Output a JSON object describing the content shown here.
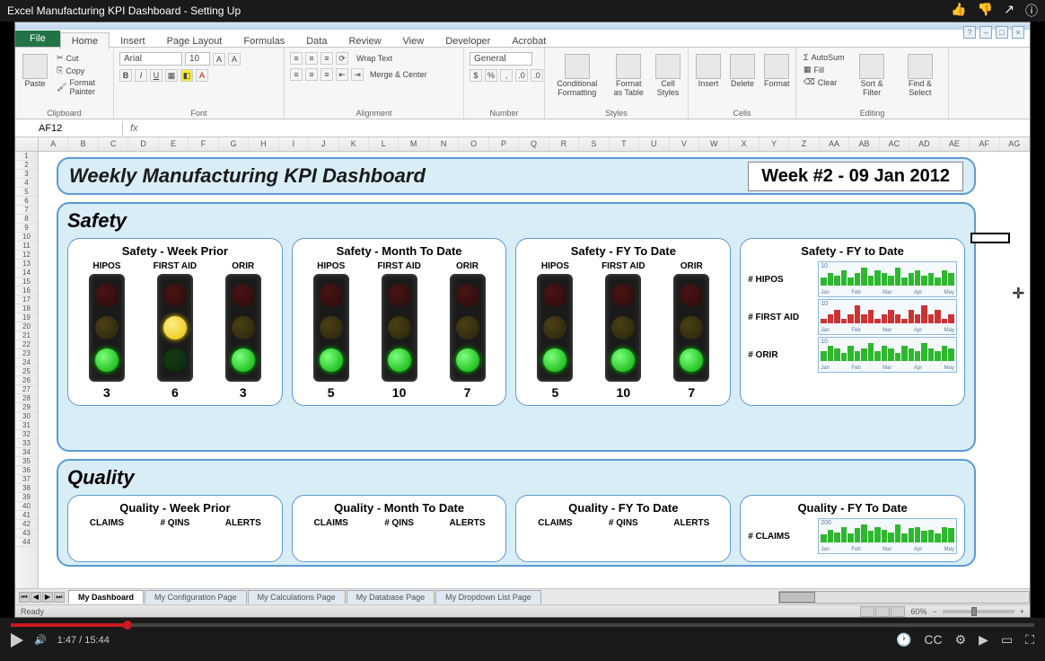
{
  "youtube": {
    "title": "Excel Manufacturing KPI Dashboard - Setting Up",
    "time_current": "1:47",
    "time_total": "15:44",
    "progress_pct": 11
  },
  "excel": {
    "tabs": [
      "Home",
      "Insert",
      "Page Layout",
      "Formulas",
      "Data",
      "Review",
      "View",
      "Developer",
      "Acrobat"
    ],
    "file_tab": "File",
    "clipboard": {
      "cut": "Cut",
      "copy": "Copy",
      "paint": "Format Painter",
      "paste": "Paste",
      "label": "Clipboard"
    },
    "font": {
      "name": "Arial",
      "size": "10",
      "label": "Font"
    },
    "alignment": {
      "wrap": "Wrap Text",
      "merge": "Merge & Center",
      "label": "Alignment"
    },
    "number": {
      "format": "General",
      "label": "Number"
    },
    "styles": {
      "cond": "Conditional Formatting",
      "table": "Format as Table",
      "cell": "Cell Styles",
      "label": "Styles"
    },
    "cells": {
      "insert": "Insert",
      "delete": "Delete",
      "format": "Format",
      "label": "Cells"
    },
    "editing": {
      "sum": "AutoSum",
      "fill": "Fill",
      "clear": "Clear",
      "sort": "Sort & Filter",
      "find": "Find & Select",
      "label": "Editing"
    },
    "namebox": "AF12",
    "columns": [
      "A",
      "B",
      "C",
      "D",
      "E",
      "F",
      "G",
      "H",
      "I",
      "J",
      "K",
      "L",
      "M",
      "N",
      "O",
      "P",
      "Q",
      "R",
      "S",
      "T",
      "U",
      "V",
      "W",
      "X",
      "Y",
      "Z",
      "AA",
      "AB",
      "AC",
      "AD",
      "AE",
      "AF",
      "AG"
    ],
    "sheet_tabs": [
      "My Dashboard",
      "My Configuration Page",
      "My Calculations Page",
      "My Database Page",
      "My Dropdown List Page"
    ],
    "status": "Ready",
    "zoom": "60%"
  },
  "dashboard": {
    "title": "Weekly Manufacturing KPI Dashboard",
    "week": "Week #2 - 09 Jan 2012",
    "panel_bg": "#d9edf7",
    "panel_border": "#5b9bd5",
    "safety": {
      "title": "Safety",
      "cards": [
        {
          "title": "Safety - Week Prior",
          "metrics": [
            {
              "label": "HIPOS",
              "light": "green",
              "value": "3"
            },
            {
              "label": "FIRST AID",
              "light": "yellow",
              "value": "6"
            },
            {
              "label": "ORIR",
              "light": "green",
              "value": "3"
            }
          ]
        },
        {
          "title": "Safety - Month To Date",
          "metrics": [
            {
              "label": "HIPOS",
              "light": "green",
              "value": "5"
            },
            {
              "label": "FIRST AID",
              "light": "green",
              "value": "10"
            },
            {
              "label": "ORIR",
              "light": "green",
              "value": "7"
            }
          ]
        },
        {
          "title": "Safety - FY To Date",
          "metrics": [
            {
              "label": "HIPOS",
              "light": "green",
              "value": "5"
            },
            {
              "label": "FIRST AID",
              "light": "green",
              "value": "10"
            },
            {
              "label": "ORIR",
              "light": "green",
              "value": "7"
            }
          ]
        }
      ],
      "spark": {
        "title": "Safety - FY to Date",
        "rows": [
          {
            "label": "# HIPOS",
            "top": "10",
            "color": "#2eb82e",
            "vals": [
              3,
              5,
              4,
              6,
              3,
              5,
              7,
              4,
              6,
              5,
              4,
              7,
              3,
              5,
              6,
              4,
              5,
              3,
              6,
              5
            ]
          },
          {
            "label": "# FIRST AID",
            "top": "10",
            "color": "#cc3333",
            "vals": [
              1,
              2,
              3,
              1,
              2,
              4,
              2,
              3,
              1,
              2,
              3,
              2,
              1,
              3,
              2,
              4,
              2,
              3,
              1,
              2
            ]
          },
          {
            "label": "# ORIR",
            "top": "10",
            "color": "#2eb82e",
            "vals": [
              4,
              6,
              5,
              3,
              6,
              4,
              5,
              7,
              4,
              6,
              5,
              3,
              6,
              5,
              4,
              7,
              5,
              4,
              6,
              5
            ]
          }
        ],
        "months": [
          "Jan",
          "Feb",
          "Mar",
          "Apr",
          "May"
        ]
      }
    },
    "quality": {
      "title": "Quality",
      "cards": [
        {
          "title": "Quality - Week Prior",
          "labels": [
            "CLAIMS",
            "# QINS",
            "ALERTS"
          ]
        },
        {
          "title": "Quality - Month To Date",
          "labels": [
            "CLAIMS",
            "# QINS",
            "ALERTS"
          ]
        },
        {
          "title": "Quality - FY To Date",
          "labels": [
            "CLAIMS",
            "# QINS",
            "ALERTS"
          ]
        }
      ],
      "spark": {
        "title": "Quality - FY To Date",
        "rows": [
          {
            "label": "# CLAIMS",
            "top": "200",
            "color": "#2eb82e",
            "vals": [
              30,
              50,
              40,
              60,
              35,
              55,
              70,
              45,
              60,
              50,
              40,
              70,
              35,
              55,
              60,
              45,
              50,
              35,
              60,
              55
            ]
          }
        ]
      }
    }
  }
}
